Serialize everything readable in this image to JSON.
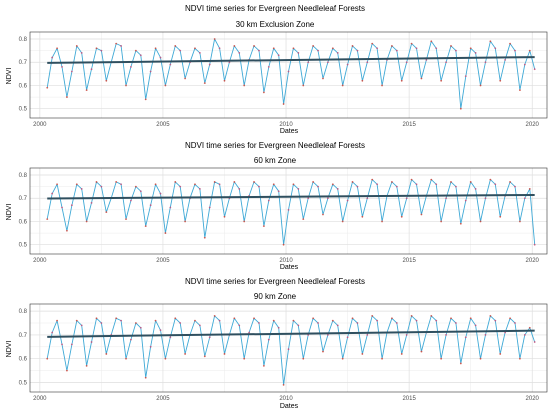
{
  "colors": {
    "ndvi_line": "#3fa9d6",
    "points": "#c44e7a",
    "points_alt": "#d2463a",
    "trend": "#2f4f5f",
    "panel_border": "#333333",
    "grid": "#ebebeb"
  },
  "chart_data": [
    {
      "type": "line",
      "title": "NDVI time series for Evergreen Needleleaf Forests",
      "subtitle": "30 km Exclusion Zone",
      "xlabel": "Dates",
      "ylabel": "NDVI",
      "xlim": [
        1999.6,
        2020.6
      ],
      "ylim": [
        0.46,
        0.83
      ],
      "x_ticks": [
        "2000",
        "2005",
        "2010",
        "2015",
        "2020"
      ],
      "y_ticks": [
        "0.5",
        "0.6",
        "0.7",
        "0.8"
      ],
      "grid": true,
      "legend": "none",
      "trend": {
        "x": [
          2000.3,
          2020.1
        ],
        "y": [
          0.697,
          0.722
        ]
      },
      "series": [
        {
          "x": [
            2000.3,
            2000.5,
            2000.7,
            2000.9,
            2001.1,
            2001.3,
            2001.5,
            2001.7,
            2001.9,
            2002.1,
            2002.3,
            2002.5,
            2002.7,
            2002.9,
            2003.1,
            2003.3,
            2003.5,
            2003.7,
            2003.9,
            2004.1,
            2004.3,
            2004.5,
            2004.7,
            2004.9,
            2005.1,
            2005.3,
            2005.5,
            2005.7,
            2005.9,
            2006.1,
            2006.3,
            2006.5,
            2006.7,
            2006.9,
            2007.1,
            2007.3,
            2007.5,
            2007.7,
            2007.9,
            2008.1,
            2008.3,
            2008.5,
            2008.7,
            2008.9,
            2009.1,
            2009.3,
            2009.5,
            2009.7,
            2009.9,
            2010.1,
            2010.3,
            2010.5,
            2010.7,
            2010.9,
            2011.1,
            2011.3,
            2011.5,
            2011.7,
            2011.9,
            2012.1,
            2012.3,
            2012.5,
            2012.7,
            2012.9,
            2013.1,
            2013.3,
            2013.5,
            2013.7,
            2013.9,
            2014.1,
            2014.3,
            2014.5,
            2014.7,
            2014.9,
            2015.1,
            2015.3,
            2015.5,
            2015.7,
            2015.9,
            2016.1,
            2016.3,
            2016.5,
            2016.7,
            2016.9,
            2017.1,
            2017.3,
            2017.5,
            2017.7,
            2017.9,
            2018.1,
            2018.3,
            2018.5,
            2018.7,
            2018.9,
            2019.1,
            2019.3,
            2019.5,
            2019.7,
            2019.9,
            2020.1
          ],
          "values": [
            0.59,
            0.72,
            0.76,
            0.68,
            0.55,
            0.66,
            0.77,
            0.74,
            0.58,
            0.67,
            0.76,
            0.75,
            0.62,
            0.7,
            0.78,
            0.77,
            0.6,
            0.68,
            0.75,
            0.73,
            0.54,
            0.66,
            0.76,
            0.72,
            0.6,
            0.69,
            0.77,
            0.75,
            0.63,
            0.7,
            0.76,
            0.74,
            0.61,
            0.69,
            0.8,
            0.76,
            0.62,
            0.7,
            0.77,
            0.74,
            0.6,
            0.71,
            0.77,
            0.75,
            0.57,
            0.68,
            0.76,
            0.73,
            0.52,
            0.66,
            0.76,
            0.74,
            0.6,
            0.7,
            0.77,
            0.75,
            0.63,
            0.7,
            0.76,
            0.74,
            0.6,
            0.69,
            0.77,
            0.75,
            0.62,
            0.7,
            0.78,
            0.76,
            0.6,
            0.71,
            0.77,
            0.75,
            0.62,
            0.7,
            0.78,
            0.76,
            0.63,
            0.71,
            0.79,
            0.76,
            0.62,
            0.7,
            0.77,
            0.75,
            0.5,
            0.64,
            0.76,
            0.74,
            0.6,
            0.7,
            0.79,
            0.76,
            0.62,
            0.71,
            0.78,
            0.75,
            0.58,
            0.69,
            0.75,
            0.67
          ]
        }
      ]
    },
    {
      "type": "line",
      "title": "NDVI time series for Evergreen Needleleaf Forests",
      "subtitle": "60 km Zone",
      "xlabel": "Dates",
      "ylabel": "NDVI",
      "xlim": [
        1999.6,
        2020.6
      ],
      "ylim": [
        0.46,
        0.83
      ],
      "x_ticks": [
        "2000",
        "2005",
        "2010",
        "2015",
        "2020"
      ],
      "y_ticks": [
        "0.5",
        "0.6",
        "0.7",
        "0.8"
      ],
      "grid": true,
      "legend": "none",
      "trend": {
        "x": [
          2000.3,
          2020.1
        ],
        "y": [
          0.699,
          0.714
        ]
      },
      "series": [
        {
          "x": [
            2000.3,
            2000.5,
            2000.7,
            2000.9,
            2001.1,
            2001.3,
            2001.5,
            2001.7,
            2001.9,
            2002.1,
            2002.3,
            2002.5,
            2002.7,
            2002.9,
            2003.1,
            2003.3,
            2003.5,
            2003.7,
            2003.9,
            2004.1,
            2004.3,
            2004.5,
            2004.7,
            2004.9,
            2005.1,
            2005.3,
            2005.5,
            2005.7,
            2005.9,
            2006.1,
            2006.3,
            2006.5,
            2006.7,
            2006.9,
            2007.1,
            2007.3,
            2007.5,
            2007.7,
            2007.9,
            2008.1,
            2008.3,
            2008.5,
            2008.7,
            2008.9,
            2009.1,
            2009.3,
            2009.5,
            2009.7,
            2009.9,
            2010.1,
            2010.3,
            2010.5,
            2010.7,
            2010.9,
            2011.1,
            2011.3,
            2011.5,
            2011.7,
            2011.9,
            2012.1,
            2012.3,
            2012.5,
            2012.7,
            2012.9,
            2013.1,
            2013.3,
            2013.5,
            2013.7,
            2013.9,
            2014.1,
            2014.3,
            2014.5,
            2014.7,
            2014.9,
            2015.1,
            2015.3,
            2015.5,
            2015.7,
            2015.9,
            2016.1,
            2016.3,
            2016.5,
            2016.7,
            2016.9,
            2017.1,
            2017.3,
            2017.5,
            2017.7,
            2017.9,
            2018.1,
            2018.3,
            2018.5,
            2018.7,
            2018.9,
            2019.1,
            2019.3,
            2019.5,
            2019.7,
            2019.9,
            2020.1
          ],
          "values": [
            0.61,
            0.72,
            0.76,
            0.66,
            0.56,
            0.67,
            0.76,
            0.74,
            0.6,
            0.68,
            0.77,
            0.75,
            0.64,
            0.7,
            0.77,
            0.76,
            0.61,
            0.69,
            0.75,
            0.73,
            0.58,
            0.67,
            0.76,
            0.72,
            0.55,
            0.66,
            0.77,
            0.75,
            0.6,
            0.7,
            0.76,
            0.74,
            0.53,
            0.66,
            0.77,
            0.76,
            0.62,
            0.7,
            0.77,
            0.74,
            0.6,
            0.71,
            0.77,
            0.75,
            0.58,
            0.69,
            0.76,
            0.73,
            0.5,
            0.65,
            0.76,
            0.74,
            0.61,
            0.7,
            0.77,
            0.75,
            0.63,
            0.7,
            0.76,
            0.74,
            0.6,
            0.69,
            0.77,
            0.75,
            0.62,
            0.7,
            0.78,
            0.76,
            0.6,
            0.71,
            0.77,
            0.75,
            0.62,
            0.7,
            0.78,
            0.76,
            0.63,
            0.71,
            0.78,
            0.76,
            0.6,
            0.7,
            0.77,
            0.75,
            0.59,
            0.69,
            0.77,
            0.74,
            0.6,
            0.7,
            0.78,
            0.76,
            0.62,
            0.71,
            0.77,
            0.75,
            0.6,
            0.7,
            0.74,
            0.5
          ]
        }
      ]
    },
    {
      "type": "line",
      "title": "NDVI time series for Evergreen Needleleaf Forests",
      "subtitle": "90 km Zone",
      "xlabel": "Dates",
      "ylabel": "NDVI",
      "xlim": [
        1999.6,
        2020.6
      ],
      "ylim": [
        0.46,
        0.83
      ],
      "x_ticks": [
        "2000",
        "2005",
        "2010",
        "2015",
        "2020"
      ],
      "y_ticks": [
        "0.5",
        "0.6",
        "0.7",
        "0.8"
      ],
      "grid": true,
      "legend": "none",
      "trend": {
        "x": [
          2000.3,
          2020.1
        ],
        "y": [
          0.692,
          0.718
        ]
      },
      "series": [
        {
          "x": [
            2000.3,
            2000.5,
            2000.7,
            2000.9,
            2001.1,
            2001.3,
            2001.5,
            2001.7,
            2001.9,
            2002.1,
            2002.3,
            2002.5,
            2002.7,
            2002.9,
            2003.1,
            2003.3,
            2003.5,
            2003.7,
            2003.9,
            2004.1,
            2004.3,
            2004.5,
            2004.7,
            2004.9,
            2005.1,
            2005.3,
            2005.5,
            2005.7,
            2005.9,
            2006.1,
            2006.3,
            2006.5,
            2006.7,
            2006.9,
            2007.1,
            2007.3,
            2007.5,
            2007.7,
            2007.9,
            2008.1,
            2008.3,
            2008.5,
            2008.7,
            2008.9,
            2009.1,
            2009.3,
            2009.5,
            2009.7,
            2009.9,
            2010.1,
            2010.3,
            2010.5,
            2010.7,
            2010.9,
            2011.1,
            2011.3,
            2011.5,
            2011.7,
            2011.9,
            2012.1,
            2012.3,
            2012.5,
            2012.7,
            2012.9,
            2013.1,
            2013.3,
            2013.5,
            2013.7,
            2013.9,
            2014.1,
            2014.3,
            2014.5,
            2014.7,
            2014.9,
            2015.1,
            2015.3,
            2015.5,
            2015.7,
            2015.9,
            2016.1,
            2016.3,
            2016.5,
            2016.7,
            2016.9,
            2017.1,
            2017.3,
            2017.5,
            2017.7,
            2017.9,
            2018.1,
            2018.3,
            2018.5,
            2018.7,
            2018.9,
            2019.1,
            2019.3,
            2019.5,
            2019.7,
            2019.9,
            2020.1
          ],
          "values": [
            0.6,
            0.71,
            0.76,
            0.66,
            0.55,
            0.66,
            0.76,
            0.74,
            0.57,
            0.67,
            0.77,
            0.75,
            0.62,
            0.7,
            0.77,
            0.76,
            0.6,
            0.68,
            0.75,
            0.73,
            0.52,
            0.65,
            0.76,
            0.72,
            0.6,
            0.69,
            0.77,
            0.75,
            0.62,
            0.7,
            0.76,
            0.74,
            0.61,
            0.69,
            0.78,
            0.76,
            0.62,
            0.7,
            0.77,
            0.74,
            0.6,
            0.71,
            0.77,
            0.75,
            0.57,
            0.68,
            0.76,
            0.73,
            0.49,
            0.64,
            0.76,
            0.74,
            0.6,
            0.7,
            0.77,
            0.75,
            0.63,
            0.7,
            0.76,
            0.74,
            0.6,
            0.69,
            0.77,
            0.75,
            0.62,
            0.7,
            0.78,
            0.76,
            0.6,
            0.71,
            0.77,
            0.75,
            0.62,
            0.7,
            0.78,
            0.76,
            0.63,
            0.71,
            0.78,
            0.76,
            0.6,
            0.7,
            0.77,
            0.75,
            0.58,
            0.69,
            0.77,
            0.74,
            0.6,
            0.7,
            0.78,
            0.76,
            0.62,
            0.71,
            0.77,
            0.75,
            0.6,
            0.7,
            0.73,
            0.67
          ]
        }
      ]
    }
  ]
}
